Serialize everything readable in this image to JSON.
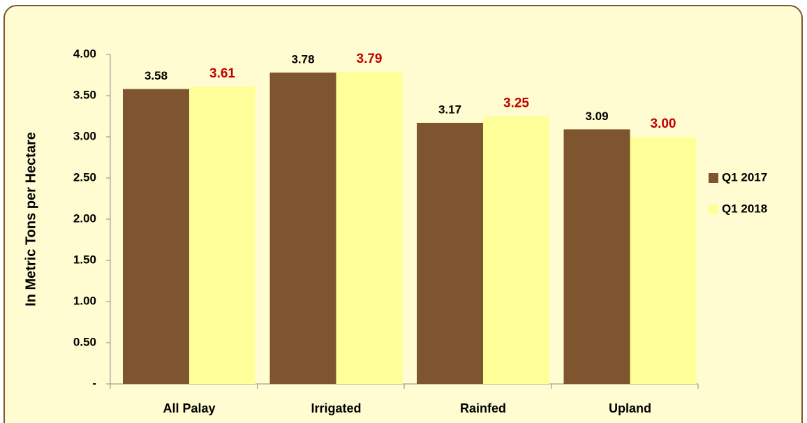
{
  "chart_data": {
    "type": "bar",
    "y_label": "In Metric Tons per Hectare",
    "categories": [
      "All Palay",
      "Irrigated",
      "Rainfed",
      "Upland"
    ],
    "series": [
      {
        "name": "Q1 2017",
        "color": "#7f5530",
        "label_color": "#000000",
        "values": [
          3.58,
          3.78,
          3.17,
          3.09
        ],
        "value_labels": [
          "3.58",
          "3.78",
          "3.17",
          "3.09"
        ]
      },
      {
        "name": "Q1 2018",
        "color": "#ffff99",
        "label_color": "#c00000",
        "values": [
          3.61,
          3.79,
          3.25,
          3.0
        ],
        "value_labels": [
          "3.61",
          "3.79",
          "3.25",
          "3.00"
        ]
      }
    ],
    "ylim": [
      0,
      4
    ],
    "yticks": [
      {
        "value": 0,
        "label": "-"
      },
      {
        "value": 0.5,
        "label": "0.50"
      },
      {
        "value": 1,
        "label": "1.00"
      },
      {
        "value": 1.5,
        "label": "1.50"
      },
      {
        "value": 2,
        "label": "2.00"
      },
      {
        "value": 2.5,
        "label": "2.50"
      },
      {
        "value": 3,
        "label": "3.00"
      },
      {
        "value": 3.5,
        "label": "3.50"
      },
      {
        "value": 4,
        "label": "4.00"
      }
    ],
    "legend": "right",
    "grid": false
  }
}
